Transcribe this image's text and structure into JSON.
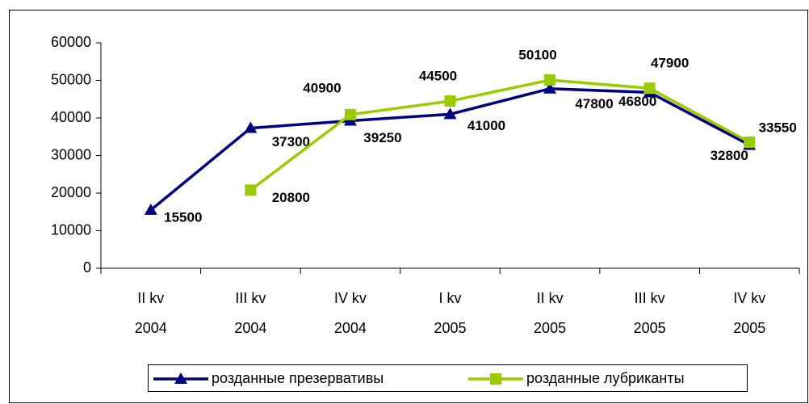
{
  "chart_data": {
    "type": "line",
    "categories": [
      [
        "II kv",
        "2004"
      ],
      [
        "III kv",
        "2004"
      ],
      [
        "IV kv",
        "2004"
      ],
      [
        "I kv",
        "2005"
      ],
      [
        "II kv",
        "2005"
      ],
      [
        "III kv",
        "2005"
      ],
      [
        "IV kv",
        "2005"
      ]
    ],
    "series": [
      {
        "name": "розданные презервативы",
        "color": "#000080",
        "marker": "triangle",
        "values": [
          15500,
          37300,
          39250,
          41000,
          47800,
          46800,
          32800
        ]
      },
      {
        "name": "розданные лубриканты",
        "color": "#99cc00",
        "marker": "square",
        "values": [
          null,
          20800,
          40900,
          44500,
          50100,
          47900,
          33550
        ]
      }
    ],
    "ylim": [
      0,
      60000
    ],
    "yticks": [
      0,
      10000,
      20000,
      30000,
      40000,
      50000,
      60000
    ],
    "grid": false,
    "legend": "bottom"
  }
}
